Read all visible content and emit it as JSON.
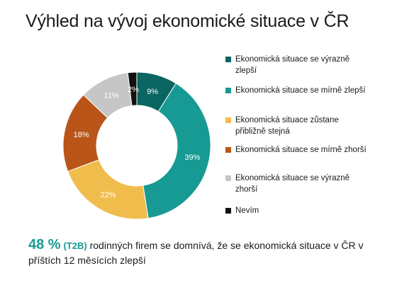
{
  "title": "Výhled na vývoj ekonomické situace v ČR",
  "chart_data": {
    "type": "pie",
    "donut": true,
    "categories": [
      "Ekonomická situace se výrazně zlepší",
      "Ekonomická situace se mírně zlepší",
      "Ekonomická situace zůstane přibližně stejná",
      "Ekonomická situace se mírně zhorší",
      "Ekonomická situace se výrazně zhorší",
      "Nevím"
    ],
    "values": [
      9,
      39,
      22,
      18,
      11,
      2
    ],
    "labels": [
      "9%",
      "39%",
      "22%",
      "18%",
      "11%",
      "2%"
    ],
    "colors": [
      "#0b6561",
      "#179a94",
      "#f0bd4d",
      "#b95519",
      "#c6c6c6",
      "#111111"
    ],
    "label_colors": [
      "#ffffff",
      "#ffffff",
      "#ffffff",
      "#ffffff",
      "#ffffff",
      "#ffffff"
    ],
    "legend_position": "right"
  },
  "footer": {
    "highlight": "48 %",
    "tag": "(T2B)",
    "text": "rodinných firem se domnívá, že se ekonomická situace v ČR v příštích 12 měsících zlepší"
  }
}
